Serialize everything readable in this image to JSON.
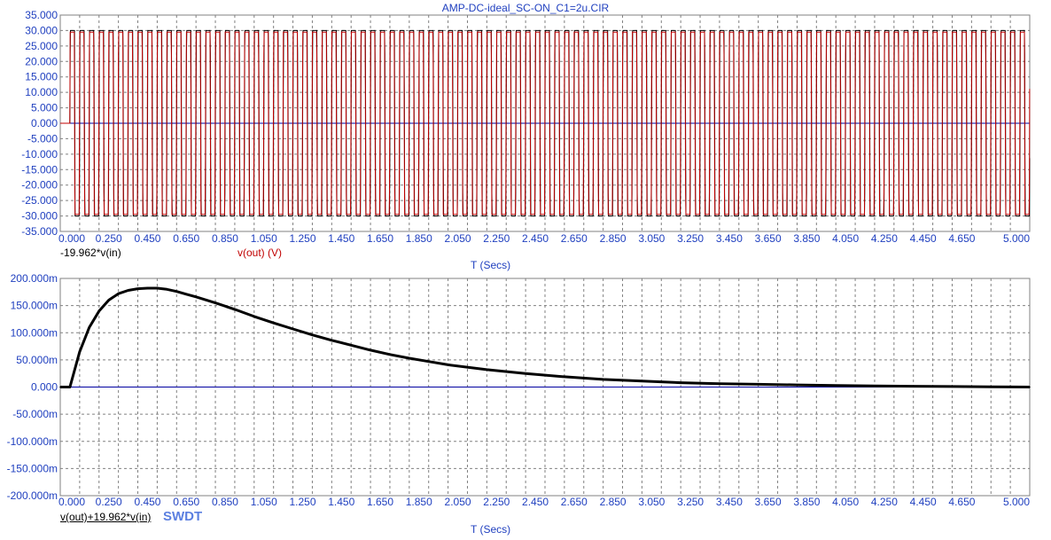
{
  "title": "AMP-DC-ideal_SC-ON_C1=2u.CIR",
  "colors": {
    "axis_text": "#1f3fbf",
    "grid": "#808080",
    "frame": "#808080",
    "zero_line": "#0000a0",
    "vout": "#c00000",
    "gain_in": "#000000",
    "diff": "#000000",
    "swdt": "#5b7fe0"
  },
  "chart_data": [
    {
      "type": "line",
      "xlabel": "T (Secs)",
      "x_ticks": [
        "0.000",
        "0.250",
        "0.450",
        "0.650",
        "0.850",
        "1.050",
        "1.250",
        "1.450",
        "1.650",
        "1.850",
        "2.050",
        "2.250",
        "2.450",
        "2.650",
        "2.850",
        "3.050",
        "3.250",
        "3.450",
        "3.650",
        "3.850",
        "4.050",
        "4.250",
        "4.450",
        "4.650",
        "5.000"
      ],
      "y_ticks": [
        "35.000",
        "30.000",
        "25.000",
        "20.000",
        "15.000",
        "10.000",
        "5.000",
        "0.000",
        "-5.000",
        "-10.000",
        "-15.000",
        "-20.000",
        "-25.000",
        "-30.000",
        "-35.000"
      ],
      "xlim": [
        0,
        5
      ],
      "ylim": [
        -35,
        35
      ],
      "grid": true,
      "legend": [
        "-19.962*v(in)",
        "v(out) (V)"
      ],
      "series": [
        {
          "name": "-19.962*v(in)",
          "amplitude": 30,
          "frequency_hz": 20,
          "x": [
            0,
            0.05
          ],
          "y": [
            0,
            0
          ]
        },
        {
          "name": "v(out) (V)",
          "amplitude": 29.5,
          "frequency_hz": 20,
          "x": [
            0,
            0.05
          ],
          "y": [
            0,
            0
          ]
        }
      ]
    },
    {
      "type": "line",
      "xlabel": "T (Secs)",
      "x_ticks": [
        "0.000",
        "0.250",
        "0.450",
        "0.650",
        "0.850",
        "1.050",
        "1.250",
        "1.450",
        "1.650",
        "1.850",
        "2.050",
        "2.250",
        "2.450",
        "2.650",
        "2.850",
        "3.050",
        "3.250",
        "3.450",
        "3.650",
        "3.850",
        "4.050",
        "4.250",
        "4.450",
        "4.650",
        "5.000"
      ],
      "y_ticks": [
        "200.000m",
        "150.000m",
        "100.000m",
        "50.000m",
        "0.000",
        "-50.000m",
        "-100.000m",
        "-150.000m",
        "-200.000m"
      ],
      "xlim": [
        0,
        5
      ],
      "ylim": [
        -0.2,
        0.2
      ],
      "grid": true,
      "legend": [
        "v(out)+19.962*v(in)"
      ],
      "annotation": "SWDT",
      "series": [
        {
          "name": "v(out)+19.962*v(in)",
          "x": [
            0,
            0.05,
            0.1,
            0.15,
            0.2,
            0.25,
            0.3,
            0.35,
            0.4,
            0.45,
            0.5,
            0.55,
            0.6,
            0.65,
            0.7,
            0.8,
            0.9,
            1.0,
            1.1,
            1.2,
            1.3,
            1.4,
            1.5,
            1.6,
            1.7,
            1.8,
            1.9,
            2.0,
            2.2,
            2.4,
            2.6,
            2.8,
            3.0,
            3.2,
            3.4,
            3.6,
            3.8,
            4.0,
            4.2,
            4.4,
            4.6,
            4.8,
            5.0
          ],
          "y": [
            0,
            0,
            0.065,
            0.11,
            0.14,
            0.16,
            0.172,
            0.178,
            0.181,
            0.182,
            0.182,
            0.18,
            0.176,
            0.171,
            0.166,
            0.155,
            0.143,
            0.13,
            0.118,
            0.107,
            0.096,
            0.086,
            0.077,
            0.068,
            0.06,
            0.053,
            0.047,
            0.041,
            0.032,
            0.025,
            0.019,
            0.014,
            0.011,
            0.008,
            0.006,
            0.005,
            0.004,
            0.003,
            0.002,
            0.0015,
            0.001,
            0.0005,
            0.0
          ]
        }
      ]
    }
  ]
}
